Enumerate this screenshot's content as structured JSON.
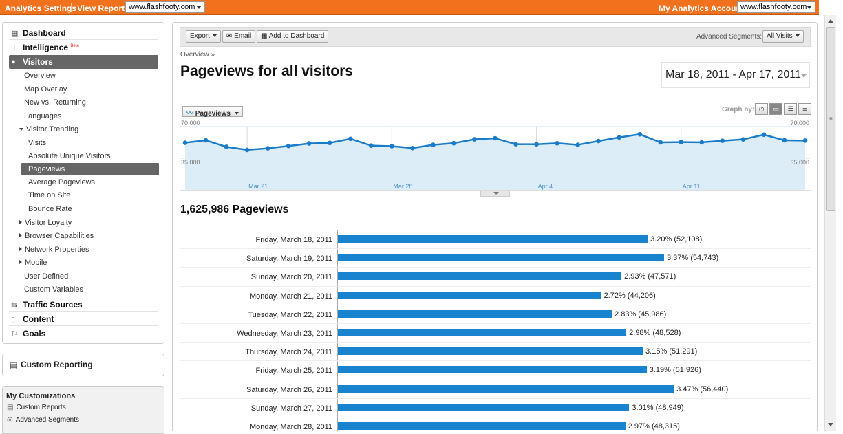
{
  "topbar": {
    "analytics_settings": "Analytics Settings",
    "view_reports": "View Reports:",
    "profile_select": "www.flashfooty.com",
    "my_accounts": "My Analytics Accounts:",
    "account_select": "www.flashfooty.com"
  },
  "sidebar": {
    "dashboard": "Dashboard",
    "intelligence": "Intelligence",
    "intelligence_badge": "Beta",
    "visitors": "Visitors",
    "visitor_items": [
      "Overview",
      "Map Overlay",
      "New vs. Returning",
      "Languages"
    ],
    "visitor_trending": "Visitor Trending",
    "trending_items": [
      "Visits",
      "Absolute Unique Visitors",
      "Pageviews",
      "Average Pageviews",
      "Time on Site",
      "Bounce Rate"
    ],
    "more_items": [
      "Visitor Loyalty",
      "Browser Capabilities",
      "Network Properties",
      "Mobile"
    ],
    "plain_items": [
      "User Defined",
      "Custom Variables"
    ],
    "traffic_sources": "Traffic Sources",
    "content": "Content",
    "goals": "Goals",
    "custom_reporting": "Custom Reporting",
    "my_customizations": "My Customizations",
    "custom_reports": "Custom Reports",
    "advanced_segments": "Advanced Segments"
  },
  "toolbar": {
    "export": "Export",
    "email": "Email",
    "add_to_dashboard": "Add to Dashboard",
    "advanced_segments_label": "Advanced Segments:",
    "segment_value": "All Visits"
  },
  "main": {
    "breadcrumb": "Overview »",
    "title": "Pageviews for all visitors",
    "date_range": "Mar 18, 2011 - Apr 17, 2011",
    "metric_button": "Pageviews",
    "graph_by": "Graph by:",
    "total": "1,625,986 Pageviews"
  },
  "chart_data": {
    "type": "line",
    "y_ticks_left": [
      "70,000",
      "35,000"
    ],
    "y_ticks_right": [
      "70,000",
      "35,000"
    ],
    "ylim": [
      0,
      70000
    ],
    "x_ticks": [
      "Mar 21",
      "Mar 28",
      "Apr 4",
      "Apr 11"
    ],
    "series": [
      {
        "values": [
          52108,
          54743,
          47571,
          44206,
          45986,
          48528,
          51291,
          51926,
          56440,
          48949,
          48315,
          46200,
          49800,
          51600,
          55900,
          57000,
          50500,
          50400,
          51500,
          49800,
          54000,
          58000,
          61500,
          52500,
          52800,
          52600,
          54300,
          55800,
          61000,
          54800,
          54500
        ]
      }
    ],
    "colors": {
      "line": "#1a7cc8",
      "area": "#dcedf8"
    }
  },
  "table": {
    "rows": [
      {
        "label": "Friday, March 18, 2011",
        "pct": 3.2,
        "text": "3.20% (52,108)"
      },
      {
        "label": "Saturday, March 19, 2011",
        "pct": 3.37,
        "text": "3.37% (54,743)"
      },
      {
        "label": "Sunday, March 20, 2011",
        "pct": 2.93,
        "text": "2.93% (47,571)"
      },
      {
        "label": "Monday, March 21, 2011",
        "pct": 2.72,
        "text": "2.72% (44,206)"
      },
      {
        "label": "Tuesday, March 22, 2011",
        "pct": 2.83,
        "text": "2.83% (45,986)"
      },
      {
        "label": "Wednesday, March 23, 2011",
        "pct": 2.98,
        "text": "2.98% (48,528)"
      },
      {
        "label": "Thursday, March 24, 2011",
        "pct": 3.15,
        "text": "3.15% (51,291)"
      },
      {
        "label": "Friday, March 25, 2011",
        "pct": 3.19,
        "text": "3.19% (51,926)"
      },
      {
        "label": "Saturday, March 26, 2011",
        "pct": 3.47,
        "text": "3.47% (56,440)"
      },
      {
        "label": "Sunday, March 27, 2011",
        "pct": 3.01,
        "text": "3.01% (48,949)"
      },
      {
        "label": "Monday, March 28, 2011",
        "pct": 2.97,
        "text": "2.97% (48,315)"
      }
    ]
  }
}
